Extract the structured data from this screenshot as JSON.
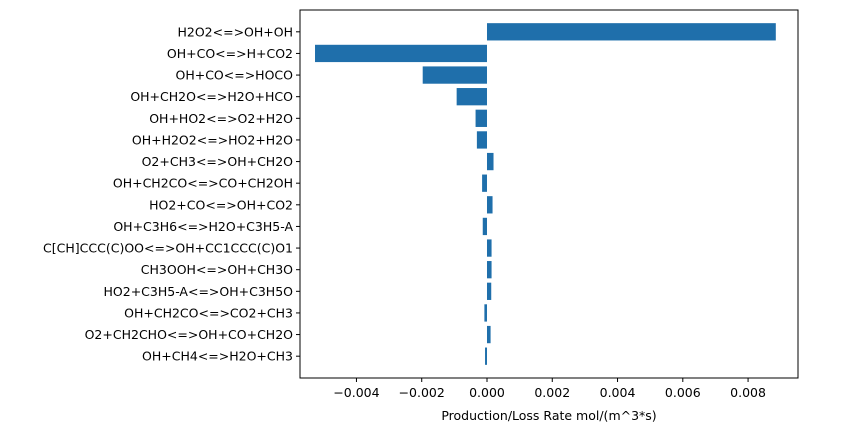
{
  "chart_data": {
    "type": "bar",
    "orientation": "horizontal",
    "title": "",
    "xlabel": "Production/Loss Rate mol/(m^3*s)",
    "ylabel": "",
    "bar_color": "#1f6fab",
    "xlim": [
      -0.00573,
      0.00953
    ],
    "xticks": [
      -0.004,
      -0.002,
      0.0,
      0.002,
      0.004,
      0.006,
      0.008
    ],
    "xtick_labels": [
      "−0.004",
      "−0.002",
      "0.000",
      "0.002",
      "0.004",
      "0.006",
      "0.008"
    ],
    "grid": false,
    "categories": [
      "H2O2<=>OH+OH",
      "OH+CO<=>H+CO2",
      "OH+CO<=>HOCO",
      "OH+CH2O<=>H2O+HCO",
      "OH+HO2<=>O2+H2O",
      "OH+H2O2<=>HO2+H2O",
      "O2+CH3<=>OH+CH2O",
      "OH+CH2CO<=>CO+CH2OH",
      "HO2+CO<=>OH+CO2",
      "OH+C3H6<=>H2O+C3H5-A",
      "C[CH]CCC(C)OO<=>OH+CC1CCC(C)O1",
      "CH3OOH<=>OH+CH3O",
      "HO2+C3H5-A<=>OH+C3H5O",
      "OH+CH2CO<=>CO2+CH3",
      "O2+CH2CHO<=>OH+CO+CH2O",
      "OH+CH4<=>H2O+CH3"
    ],
    "values": [
      0.00885,
      -0.00527,
      -0.00197,
      -0.00093,
      -0.00035,
      -0.00031,
      0.0002,
      -0.00015,
      0.00017,
      -0.00013,
      0.00014,
      0.00014,
      0.00013,
      -8e-05,
      0.00011,
      -6e-05
    ]
  }
}
